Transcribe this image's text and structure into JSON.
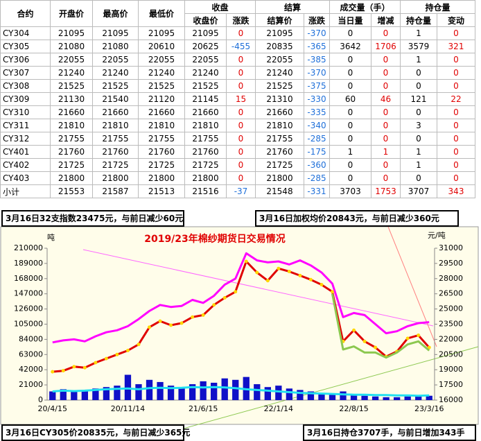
{
  "table": {
    "header_top": [
      "合约",
      "开盘价",
      "最高价",
      "最低价",
      "收盘",
      "结算",
      "成交量（手）",
      "持仓量"
    ],
    "header_sub": [
      "收盘价",
      "涨跌",
      "结算价",
      "涨跌",
      "当日量",
      "增减",
      "持仓量",
      "变动"
    ],
    "rows": [
      [
        "CY304",
        21095,
        21095,
        21095,
        21095,
        0,
        21095,
        -370,
        0,
        0,
        1,
        0
      ],
      [
        "CY305",
        21080,
        21080,
        20610,
        20625,
        -455,
        20835,
        -365,
        3642,
        1706,
        3579,
        321
      ],
      [
        "CY306",
        22055,
        22055,
        22055,
        22055,
        0,
        22055,
        -385,
        0,
        0,
        1,
        0
      ],
      [
        "CY307",
        21240,
        21240,
        21240,
        21240,
        0,
        21240,
        -370,
        0,
        0,
        0,
        0
      ],
      [
        "CY308",
        21525,
        21525,
        21525,
        21525,
        0,
        21525,
        -375,
        0,
        0,
        0,
        0
      ],
      [
        "CY309",
        21130,
        21540,
        21120,
        21145,
        15,
        21310,
        -330,
        60,
        46,
        121,
        22
      ],
      [
        "CY310",
        21660,
        21660,
        21660,
        21660,
        0,
        21660,
        -335,
        0,
        0,
        0,
        0
      ],
      [
        "CY311",
        21810,
        21810,
        21810,
        21810,
        0,
        21810,
        -340,
        0,
        0,
        3,
        0
      ],
      [
        "CY312",
        21755,
        21755,
        21755,
        21755,
        0,
        21755,
        -285,
        0,
        0,
        0,
        0
      ],
      [
        "CY401",
        21760,
        21760,
        21760,
        21760,
        0,
        21760,
        -175,
        1,
        1,
        1,
        0
      ],
      [
        "CY402",
        21725,
        21725,
        21725,
        21725,
        0,
        21725,
        -360,
        0,
        0,
        1,
        0
      ],
      [
        "CY403",
        21800,
        21800,
        21800,
        21800,
        0,
        21800,
        -285,
        0,
        0,
        0,
        0
      ],
      [
        "小计",
        21553,
        21587,
        21513,
        21516,
        -37,
        21548,
        -331,
        3703,
        1753,
        3707,
        343
      ]
    ]
  },
  "annotations": [
    "3月16日32支指数23475元，与前日减少60元",
    "3月16日加权均价20843元，与前日减少360元",
    "3月16日CY305价20835元，与前日减少365元",
    "3月16日持仓3707手，与前日增加343手"
  ],
  "chart_data": {
    "type": "line",
    "title": "2019/23年棉纱期货日交易情况",
    "ylabel": "吨",
    "y2label": "元/吨",
    "categories": [
      "20/4/15",
      null,
      null,
      null,
      null,
      null,
      null,
      "20/11/14",
      null,
      null,
      null,
      null,
      null,
      null,
      "21/6/15",
      null,
      null,
      null,
      null,
      null,
      null,
      "22/1/14",
      null,
      null,
      null,
      null,
      null,
      null,
      "22/8/15",
      null,
      null,
      null,
      null,
      null,
      null,
      "23/3/16"
    ],
    "ylim": [
      0,
      210000
    ],
    "yticks": [
      0,
      21000,
      42000,
      63000,
      84000,
      105000,
      126000,
      147000,
      168000,
      189000,
      210000
    ],
    "y2lim": [
      16000,
      31000
    ],
    "y2ticks": [
      16000,
      17500,
      19000,
      20500,
      22000,
      23500,
      25000,
      26500,
      28000,
      29500,
      31000
    ],
    "series": [
      {
        "type": "bar",
        "color": "#1010c8",
        "values": [
          12000,
          15000,
          13000,
          14000,
          16000,
          18000,
          20000,
          35000,
          22000,
          28000,
          25000,
          20000,
          18000,
          22000,
          26000,
          24000,
          30000,
          28000,
          32000,
          22000,
          18000,
          20000,
          16000,
          14000,
          12000,
          8000,
          9000,
          12000,
          8000,
          6000,
          5000,
          4000,
          4000,
          5000,
          5000,
          6000
        ]
      },
      {
        "type": "line",
        "color": "#22e0f0",
        "values": [
          12000,
          13000,
          12500,
          13000,
          14000,
          15000,
          15500,
          16000,
          15000,
          16500,
          17000,
          16500,
          17000,
          18000,
          17500,
          18000,
          17500,
          16500,
          15000,
          14000,
          13000,
          12000,
          11000,
          10000,
          9500,
          9000,
          8500,
          8000,
          7500,
          7500,
          7000,
          7000,
          6500,
          6500,
          6000,
          6500
        ]
      },
      {
        "type": "line",
        "axis": "y2",
        "color": "#ff00ff",
        "values": [
          21700,
          21900,
          22000,
          21800,
          22300,
          22700,
          22900,
          23300,
          24000,
          24800,
          25400,
          25200,
          25300,
          25900,
          25600,
          26300,
          27400,
          28000,
          30500,
          29800,
          29600,
          29700,
          29400,
          29800,
          29300,
          28600,
          27500,
          24200,
          24600,
          24400,
          23500,
          22600,
          22800,
          23300,
          23600,
          23700
        ]
      },
      {
        "type": "line",
        "axis": "y2",
        "color": "#e00000",
        "marker_color": "#ffd700",
        "values": [
          18800,
          18900,
          19300,
          19200,
          19700,
          20100,
          20500,
          20900,
          21500,
          23200,
          23800,
          23400,
          23600,
          24200,
          24400,
          25400,
          26100,
          26700,
          29700,
          28600,
          27800,
          29000,
          28700,
          28300,
          27900,
          27400,
          26700,
          21800,
          22900,
          21800,
          21200,
          20300,
          20800,
          22100,
          22400,
          21200
        ]
      },
      {
        "type": "line",
        "axis": "y2",
        "color": "#8cc850",
        "values": [
          null,
          null,
          null,
          null,
          null,
          null,
          null,
          null,
          null,
          null,
          null,
          null,
          null,
          null,
          null,
          null,
          null,
          null,
          null,
          null,
          null,
          null,
          null,
          null,
          null,
          null,
          26500,
          21000,
          21300,
          20700,
          20700,
          20200,
          20700,
          21500,
          21800,
          20900
        ]
      }
    ]
  }
}
